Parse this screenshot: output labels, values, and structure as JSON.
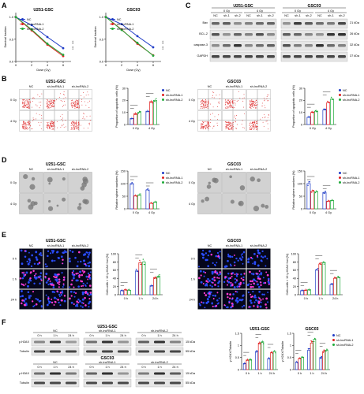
{
  "colors": {
    "nc": "#1f3cc7",
    "sh1": "#e01f1f",
    "sh2": "#1faa3a"
  },
  "legend": [
    "NC",
    "sh-lncRNA-1",
    "sh-lncRNA-2"
  ],
  "panel_letters": [
    "A",
    "B",
    "C",
    "D",
    "E",
    "F"
  ],
  "panelA": {
    "titles": [
      "U251-GSC",
      "GSC03"
    ],
    "ylabel": "Survival fraction",
    "xlabel": "Dose (Gy)",
    "xticks": [
      "0",
      "2",
      "4",
      "6"
    ],
    "yticks": [
      "1.0",
      "0.5",
      "0.0"
    ],
    "stars": [
      "***",
      "***",
      "***",
      "***"
    ]
  },
  "panelC": {
    "groups": [
      "U251-GSC",
      "GSC03"
    ],
    "doses": [
      "0 Gy",
      "4 Gy"
    ],
    "lanes": [
      "NC",
      "sh-1",
      "sh-2"
    ],
    "rows": [
      {
        "name": "Bax",
        "kda": "21 kDa"
      },
      {
        "name": "BCL-2",
        "kda": "26 kDa"
      },
      {
        "name": "caspase-3",
        "kda": "32 kDa"
      },
      {
        "name": "GAPDH",
        "kda": "37 kDa"
      }
    ]
  },
  "panelB": {
    "cell_lines": [
      "U251-GSC",
      "GSC03"
    ],
    "cols": [
      "NC",
      "sh-lncRNA-1",
      "sh-lncRNA-2"
    ],
    "rows": [
      "0 Gy",
      "4 Gy"
    ],
    "ylabel": "Proportion of apoptotic cells (%)",
    "cats": [
      "0 Gy",
      "4 Gy"
    ]
  },
  "panelD": {
    "cell_lines": [
      "U251-GSC",
      "GSC03"
    ],
    "cols": [
      "NC",
      "sh-lncRNA-1",
      "sh-lncRNA-2"
    ],
    "rows": [
      "0 Gy",
      "4 Gy"
    ],
    "ylabel": "Relative sphere numbers (%)",
    "cats": [
      "0 Gy",
      "4 Gy"
    ]
  },
  "panelE": {
    "cell_lines": [
      "U251-GSC",
      "GSC03"
    ],
    "cols": [
      "NC",
      "sh-lncRNA-1",
      "sh-lncRNA-2"
    ],
    "rows": [
      "0 h",
      "1 h",
      "24 h"
    ],
    "ylabel": "Cells with > 10 γ-H2AX foci (%)",
    "cats": [
      "0 h",
      "1 h",
      "24 h"
    ]
  },
  "panelF": {
    "groups": [
      "NC",
      "sh-lncRNA-1",
      "sh-lncRNA-2"
    ],
    "times": [
      "0 h",
      "1 h",
      "24 h"
    ],
    "blots": [
      {
        "line": "U251-GSC",
        "rows": [
          {
            "name": "γ-H2AX",
            "kda": "15 kDa"
          },
          {
            "name": "Tubulin",
            "kda": "55 kDa"
          }
        ]
      },
      {
        "line": "GSC03",
        "rows": [
          {
            "name": "γ-H2AX",
            "kda": "15 kDa"
          },
          {
            "name": "Tubulin",
            "kda": "55 kDa"
          }
        ]
      }
    ],
    "chart_titles": [
      "U251-GSC",
      "GSC03"
    ],
    "ylabel": "γ-H2AX/Tubulin"
  },
  "chart_data": [
    {
      "id": "A1",
      "type": "line",
      "title": "U251-GSC",
      "xlabel": "Dose (Gy)",
      "ylabel": "Survival fraction",
      "x": [
        0,
        2,
        4,
        6
      ],
      "xlim": [
        0,
        7
      ],
      "ylim": [
        0,
        1.1
      ],
      "series": [
        {
          "name": "NC",
          "values": [
            1.0,
            0.82,
            0.55,
            0.3
          ]
        },
        {
          "name": "sh-lncRNA-1",
          "values": [
            1.0,
            0.7,
            0.38,
            0.12
          ]
        },
        {
          "name": "sh-lncRNA-2",
          "values": [
            1.0,
            0.72,
            0.4,
            0.15
          ]
        }
      ]
    },
    {
      "id": "A2",
      "type": "line",
      "title": "GSC03",
      "xlabel": "Dose (Gy)",
      "ylabel": "Survival fraction",
      "x": [
        0,
        2,
        4,
        6
      ],
      "xlim": [
        0,
        7
      ],
      "ylim": [
        0,
        1.1
      ],
      "series": [
        {
          "name": "NC",
          "values": [
            1.0,
            0.84,
            0.57,
            0.32
          ]
        },
        {
          "name": "sh-lncRNA-1",
          "values": [
            1.0,
            0.72,
            0.4,
            0.14
          ]
        },
        {
          "name": "sh-lncRNA-2",
          "values": [
            1.0,
            0.71,
            0.42,
            0.13
          ]
        }
      ]
    },
    {
      "id": "B1",
      "type": "bar",
      "title": "",
      "ylabel": "Proportion of apoptotic cells (%)",
      "categories": [
        "0 Gy",
        "4 Gy"
      ],
      "ylim": [
        0,
        30
      ],
      "yticks": [
        0,
        10,
        20,
        30
      ],
      "series": [
        {
          "name": "NC",
          "values": [
            5,
            11
          ]
        },
        {
          "name": "sh-lncRNA-1",
          "values": [
            9,
            19
          ]
        },
        {
          "name": "sh-lncRNA-2",
          "values": [
            10,
            20
          ]
        }
      ]
    },
    {
      "id": "B2",
      "type": "bar",
      "title": "",
      "ylabel": "Proportion of apoptotic cells (%)",
      "categories": [
        "0 Gy",
        "4 Gy"
      ],
      "ylim": [
        0,
        30
      ],
      "yticks": [
        0,
        10,
        20,
        30
      ],
      "series": [
        {
          "name": "NC",
          "values": [
            6,
            12
          ]
        },
        {
          "name": "sh-lncRNA-1",
          "values": [
            10,
            18
          ]
        },
        {
          "name": "sh-lncRNA-2",
          "values": [
            11,
            21
          ]
        }
      ]
    },
    {
      "id": "D1",
      "type": "bar",
      "title": "",
      "ylabel": "Relative sphere numbers (%)",
      "categories": [
        "0 Gy",
        "4 Gy"
      ],
      "ylim": [
        0,
        150
      ],
      "yticks": [
        0,
        50,
        100,
        150
      ],
      "series": [
        {
          "name": "NC",
          "values": [
            100,
            75
          ]
        },
        {
          "name": "sh-lncRNA-1",
          "values": [
            52,
            22
          ]
        },
        {
          "name": "sh-lncRNA-2",
          "values": [
            55,
            26
          ]
        }
      ]
    },
    {
      "id": "D2",
      "type": "bar",
      "title": "",
      "ylabel": "Relative sphere numbers (%)",
      "categories": [
        "0 Gy",
        "4 Gy"
      ],
      "ylim": [
        0,
        150
      ],
      "yticks": [
        0,
        50,
        100,
        150
      ],
      "series": [
        {
          "name": "NC",
          "values": [
            100,
            65
          ]
        },
        {
          "name": "sh-lncRNA-1",
          "values": [
            70,
            30
          ]
        },
        {
          "name": "sh-lncRNA-2",
          "values": [
            68,
            33
          ]
        }
      ]
    },
    {
      "id": "E1",
      "type": "bar",
      "title": "",
      "ylabel": "Cells with > 10 γ-H2AX foci (%)",
      "categories": [
        "0 h",
        "1 h",
        "24 h"
      ],
      "ylim": [
        0,
        100
      ],
      "yticks": [
        0,
        20,
        40,
        60,
        80,
        100
      ],
      "series": [
        {
          "name": "NC",
          "values": [
            10,
            58,
            22
          ]
        },
        {
          "name": "sh-lncRNA-1",
          "values": [
            12,
            78,
            42
          ]
        },
        {
          "name": "sh-lncRNA-2",
          "values": [
            11,
            80,
            45
          ]
        }
      ]
    },
    {
      "id": "E2",
      "type": "bar",
      "title": "",
      "ylabel": "Cells with > 10 γ-H2AX foci (%)",
      "categories": [
        "0 h",
        "1 h",
        "24 h"
      ],
      "ylim": [
        0,
        100
      ],
      "yticks": [
        0,
        20,
        40,
        60,
        80,
        100
      ],
      "series": [
        {
          "name": "NC",
          "values": [
            10,
            60,
            25
          ]
        },
        {
          "name": "sh-lncRNA-1",
          "values": [
            11,
            75,
            40
          ]
        },
        {
          "name": "sh-lncRNA-2",
          "values": [
            12,
            78,
            42
          ]
        }
      ]
    },
    {
      "id": "F1",
      "type": "bar",
      "title": "U251-GSC",
      "ylabel": "γ-H2AX/Tubulin",
      "categories": [
        "0 h",
        "1 h",
        "24 h"
      ],
      "ylim": [
        0,
        1.5
      ],
      "yticks": [
        0,
        0.5,
        1.0,
        1.5
      ],
      "series": [
        {
          "name": "NC",
          "values": [
            0.25,
            0.75,
            0.45
          ]
        },
        {
          "name": "sh-lncRNA-1",
          "values": [
            0.4,
            1.1,
            0.7
          ]
        },
        {
          "name": "sh-lncRNA-2",
          "values": [
            0.42,
            1.15,
            0.75
          ]
        }
      ]
    },
    {
      "id": "F2",
      "type": "bar",
      "title": "GSC03",
      "ylabel": "γ-H2AX/Tubulin",
      "categories": [
        "0 h",
        "1 h",
        "24 h"
      ],
      "ylim": [
        0,
        1.5
      ],
      "yticks": [
        0,
        0.5,
        1.0,
        1.5
      ],
      "series": [
        {
          "name": "NC",
          "values": [
            0.3,
            0.8,
            0.5
          ]
        },
        {
          "name": "sh-lncRNA-1",
          "values": [
            0.45,
            1.1,
            0.75
          ]
        },
        {
          "name": "sh-lncRNA-2",
          "values": [
            0.5,
            1.25,
            0.8
          ]
        }
      ]
    }
  ]
}
